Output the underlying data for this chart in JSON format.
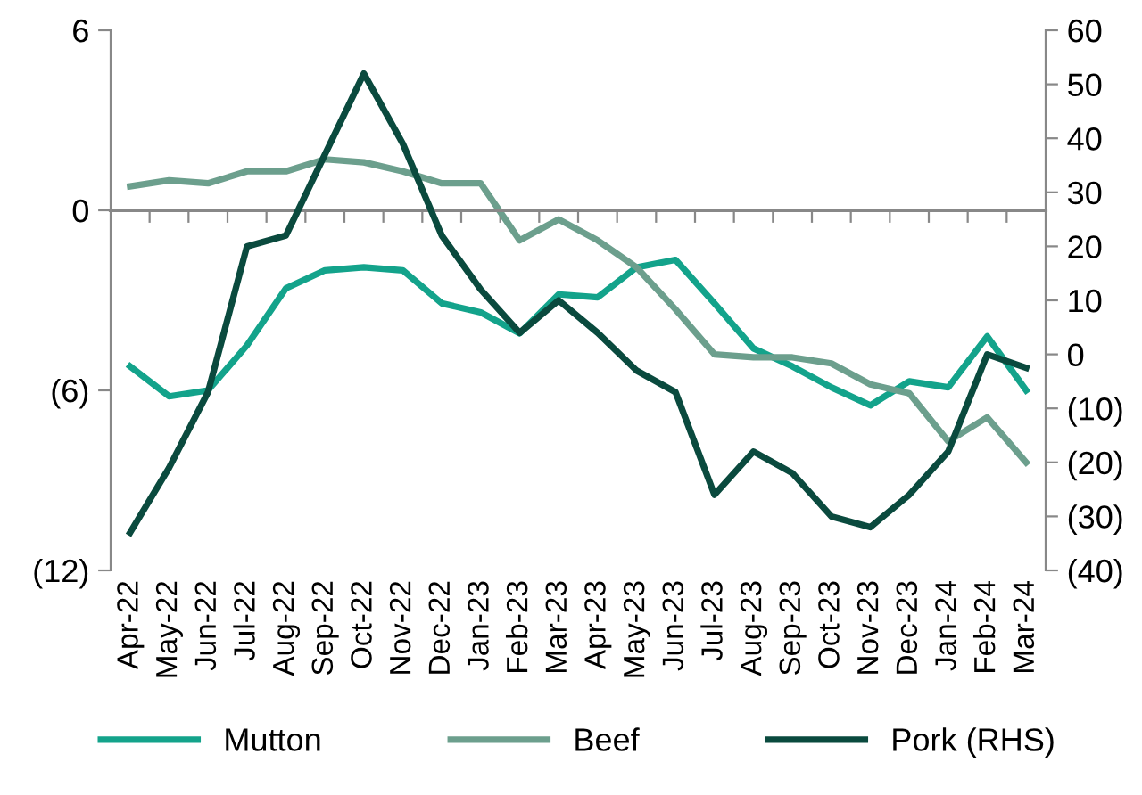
{
  "chart_data": {
    "type": "line",
    "categories": [
      "Apr-22",
      "May-22",
      "Jun-22",
      "Jul-22",
      "Aug-22",
      "Sep-22",
      "Oct-22",
      "Nov-22",
      "Dec-22",
      "Jan-23",
      "Feb-23",
      "Mar-23",
      "Apr-23",
      "May-23",
      "Jun-23",
      "Jul-23",
      "Aug-23",
      "Sep-23",
      "Oct-23",
      "Nov-23",
      "Dec-23",
      "Jan-24",
      "Feb-24",
      "Mar-24"
    ],
    "series": [
      {
        "name": "Mutton",
        "color": "#13a38b",
        "values": [
          -5.2,
          -6.2,
          -6.0,
          -4.5,
          -2.6,
          -2.0,
          -1.9,
          -2.0,
          -3.1,
          -3.4,
          -4.1,
          -2.8,
          -2.9,
          -1.9,
          -1.65,
          -3.1,
          -4.6,
          -5.2,
          -5.9,
          -6.5,
          -5.7,
          -5.9,
          -4.2,
          -6.0
        ]
      },
      {
        "name": "Beef",
        "color": "#6c9f8d",
        "values": [
          0.8,
          1.0,
          0.9,
          1.3,
          1.3,
          1.7,
          1.6,
          1.3,
          0.9,
          0.9,
          -1.0,
          -0.3,
          -1.0,
          -1.9,
          -3.3,
          -4.8,
          -4.9,
          -4.9,
          -5.1,
          -5.8,
          -6.1,
          -7.7,
          -6.9,
          -8.4
        ]
      },
      {
        "name": "Pork (RHS)",
        "color": "#0a4a3e",
        "axis": "y2",
        "values": [
          -33,
          -21,
          -7,
          20,
          22,
          37,
          52,
          39,
          22,
          12,
          4,
          10,
          4,
          -3,
          -7,
          -26,
          -18,
          -22,
          -30,
          -32,
          -26,
          -18,
          0,
          -2.5
        ]
      }
    ],
    "ylim": [
      -12,
      6
    ],
    "yticks": [
      {
        "value": -12,
        "label": "(12)"
      },
      {
        "value": -6,
        "label": "(6)"
      },
      0,
      6
    ],
    "y2lim": [
      -40,
      60
    ],
    "y2ticks": [
      {
        "value": -40,
        "label": "(40)"
      },
      {
        "value": -30,
        "label": "(30)"
      },
      {
        "value": -20,
        "label": "(20)"
      },
      {
        "value": -10,
        "label": "(10)"
      },
      0,
      10,
      20,
      30,
      40,
      50,
      60
    ],
    "legend": "bottom",
    "line_style": "solid",
    "marker": "none"
  }
}
